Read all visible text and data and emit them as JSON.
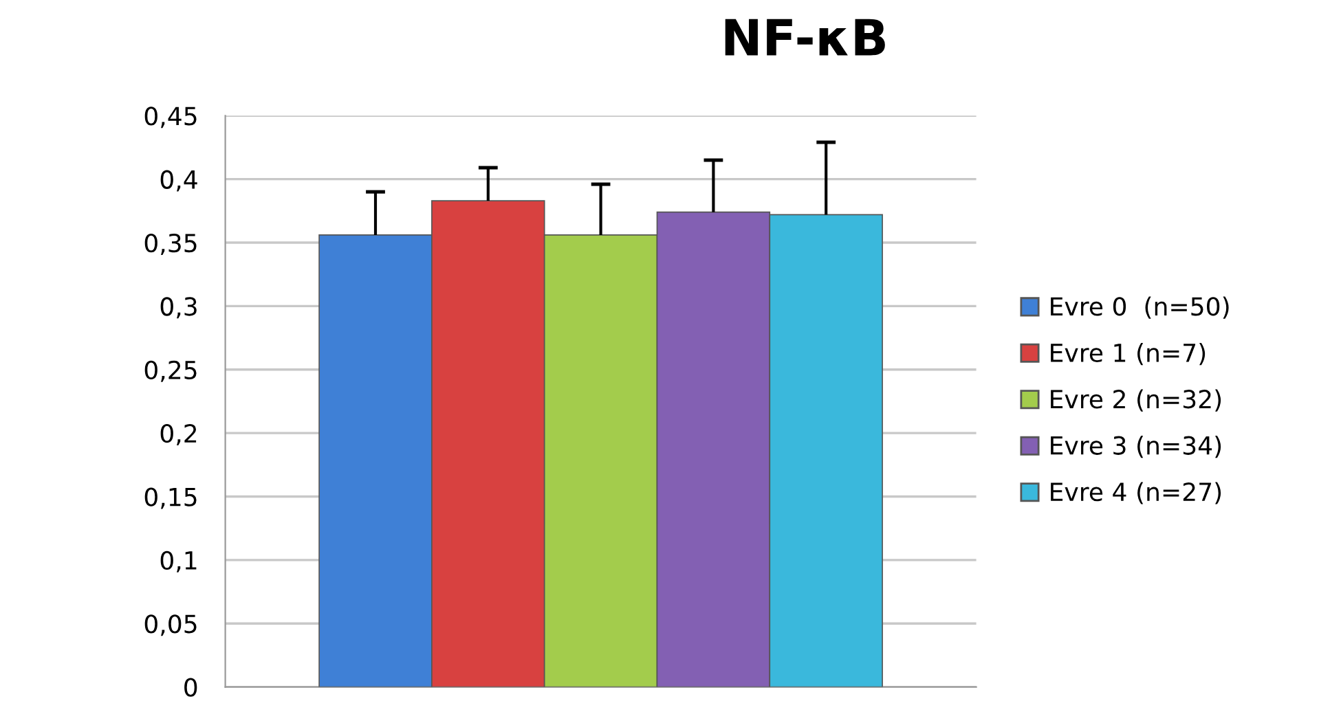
{
  "chart_data": {
    "type": "bar",
    "title": "NF-κB",
    "categories": [
      null
    ],
    "series": [
      {
        "name": "Evre 0  (n=50)",
        "color": "#3f80d6",
        "values": [
          0.356
        ],
        "errors": [
          [
            0.356,
            0.39
          ]
        ]
      },
      {
        "name": "Evre 1 (n=7)",
        "color": "#d84140",
        "values": [
          0.383
        ],
        "errors": [
          [
            0.383,
            0.409
          ]
        ]
      },
      {
        "name": "Evre 2 (n=32)",
        "color": "#a3cc4c",
        "values": [
          0.356
        ],
        "errors": [
          [
            0.356,
            0.396
          ]
        ]
      },
      {
        "name": "Evre 3 (n=34)",
        "color": "#8360b3",
        "values": [
          0.374
        ],
        "errors": [
          [
            0.374,
            0.415
          ]
        ]
      },
      {
        "name": "Evre 4 (n=27)",
        "color": "#3ab8dc",
        "values": [
          0.372
        ],
        "errors": [
          [
            0.372,
            0.429
          ]
        ]
      }
    ],
    "ylim": [
      0,
      0.45
    ],
    "yticks": [
      0,
      {
        "value": 0.05,
        "label": "0,05"
      },
      {
        "value": 0.1,
        "label": "0,1"
      },
      {
        "value": 0.15,
        "label": "0,15"
      },
      {
        "value": 0.2,
        "label": "0,2"
      },
      {
        "value": 0.25,
        "label": "0,25"
      },
      {
        "value": 0.3,
        "label": "0,3"
      },
      {
        "value": 0.35,
        "label": "0,35"
      },
      {
        "value": 0.4,
        "label": "0,4"
      },
      {
        "value": 0.45,
        "label": "0,45"
      }
    ],
    "grid": "y",
    "legend": "right"
  }
}
